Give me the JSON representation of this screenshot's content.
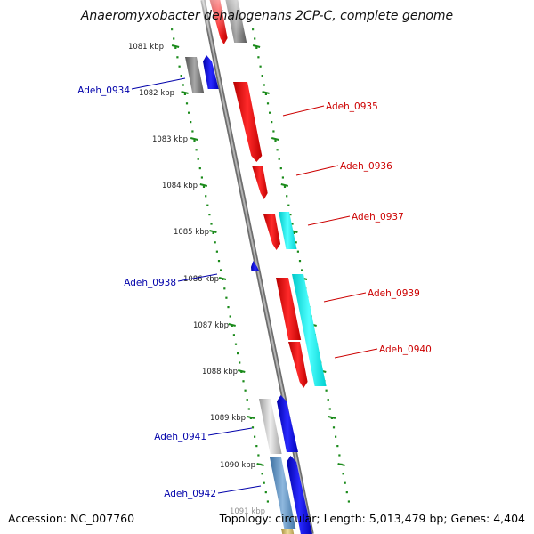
{
  "title": "Anaeromyxobacter dehalogenans 2CP-C, complete genome",
  "footer": {
    "accession": "Accession: NC_007760",
    "summary": "Topology: circular; Length: 5,013,479 bp; Genes: 4,404"
  },
  "colors": {
    "forward_label": "#cc0000",
    "reverse_label": "#0000aa",
    "tick_dots": "#1a8a1a",
    "backbone": "#8a8a8a"
  },
  "kbp_ticks": [
    "1081 kbp",
    "1082 kbp",
    "1083 kbp",
    "1084 kbp",
    "1085 kbp",
    "1086 kbp",
    "1087 kbp",
    "1088 kbp",
    "1089 kbp",
    "1090 kbp",
    "1091 kbp"
  ],
  "gene_labels": [
    {
      "text": "Adeh_0934",
      "strand": "reverse"
    },
    {
      "text": "Adeh_0935",
      "strand": "forward"
    },
    {
      "text": "Adeh_0936",
      "strand": "forward"
    },
    {
      "text": "Adeh_0937",
      "strand": "forward"
    },
    {
      "text": "Adeh_0938",
      "strand": "reverse"
    },
    {
      "text": "Adeh_0939",
      "strand": "forward"
    },
    {
      "text": "Adeh_0940",
      "strand": "forward"
    },
    {
      "text": "Adeh_0941",
      "strand": "reverse"
    },
    {
      "text": "Adeh_0942",
      "strand": "reverse"
    }
  ]
}
